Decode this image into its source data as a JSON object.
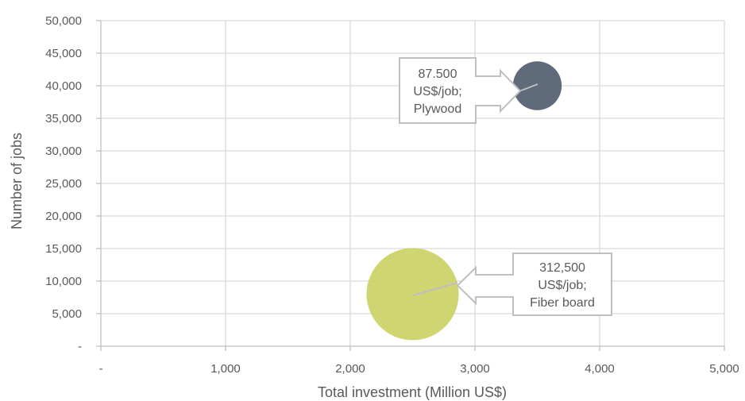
{
  "chart_data": {
    "type": "bubble",
    "title": "",
    "xlabel": "Total investment (Million US$)",
    "ylabel": "Number of jobs",
    "xlim": [
      0,
      5000
    ],
    "ylim": [
      0,
      50000
    ],
    "x_ticks": [
      {
        "value": 0,
        "label": "-"
      },
      {
        "value": 1000,
        "label": "1,000"
      },
      {
        "value": 2000,
        "label": "2,000"
      },
      {
        "value": 3000,
        "label": "3,000"
      },
      {
        "value": 4000,
        "label": "4,000"
      },
      {
        "value": 5000,
        "label": "5,000"
      }
    ],
    "y_ticks": [
      {
        "value": 0,
        "label": "-"
      },
      {
        "value": 5000,
        "label": "5,000"
      },
      {
        "value": 10000,
        "label": "10,000"
      },
      {
        "value": 15000,
        "label": "15,000"
      },
      {
        "value": 20000,
        "label": "20,000"
      },
      {
        "value": 25000,
        "label": "25,000"
      },
      {
        "value": 30000,
        "label": "30,000"
      },
      {
        "value": 35000,
        "label": "35,000"
      },
      {
        "value": 40000,
        "label": "40,000"
      },
      {
        "value": 45000,
        "label": "45,000"
      },
      {
        "value": 50000,
        "label": "50,000"
      }
    ],
    "grid": true,
    "legend": "none",
    "bubbles": [
      {
        "x": 3500,
        "y": 40000,
        "size": 87500,
        "color": "#5f6b7a",
        "label_lines": [
          "87.500",
          "US$/job;",
          "Plywood"
        ]
      },
      {
        "x": 2500,
        "y": 8000,
        "size": 312500,
        "color": "#c9d062",
        "label_lines": [
          "312,500",
          "US$/job;",
          "Fiber board"
        ]
      }
    ]
  }
}
